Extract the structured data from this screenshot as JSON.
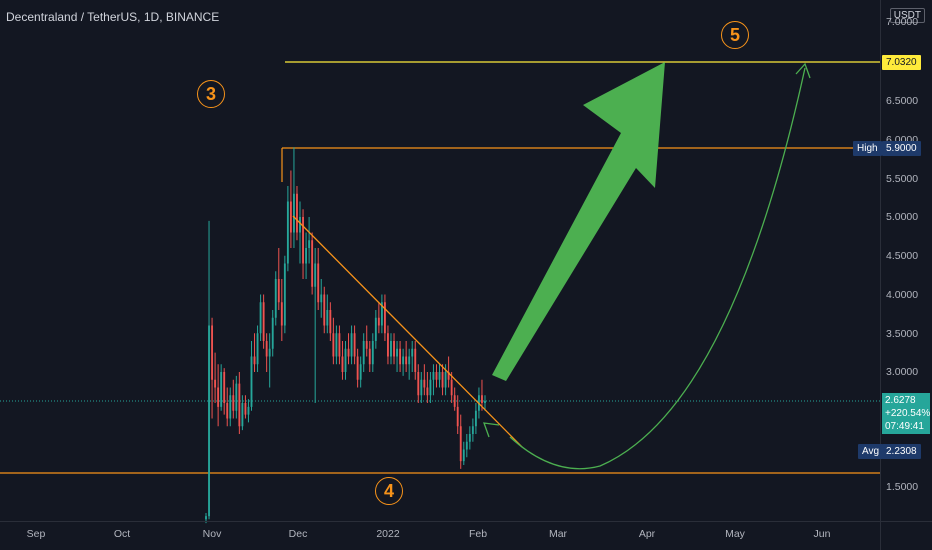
{
  "header": {
    "title": "Decentraland / TetherUS, 1D, BINANCE"
  },
  "price_axis": {
    "currency": "USDT",
    "ticks": [
      "7.0000",
      "6.5000",
      "6.0000",
      "5.5000",
      "5.0000",
      "4.5000",
      "4.0000",
      "3.5000",
      "3.0000",
      "1.5000"
    ],
    "target_value": "7.0320",
    "high_label": "High",
    "high_value": "5.9000",
    "last_price": "2.6278",
    "change_pct": "+220.54%",
    "countdown": "07:49:41",
    "avg_label": "Avg",
    "avg_value": "2.2308"
  },
  "time_axis": {
    "labels": [
      "Sep",
      "Oct",
      "Nov",
      "Dec",
      "2022",
      "Feb",
      "Mar",
      "Apr",
      "May",
      "Jun"
    ]
  },
  "wave_labels": [
    "3",
    "4",
    "5"
  ],
  "colors": {
    "background": "#131722",
    "up": "#26a69a",
    "down": "#ef5350",
    "orange": "#f7931a",
    "target": "#ffeb3b",
    "arrow": "#4caf50"
  },
  "chart_data": {
    "type": "candlestick",
    "title": "Decentraland / TetherUS, 1D, BINANCE",
    "interval": "1D",
    "x_axis": [
      "Sep",
      "Oct",
      "Nov",
      "Dec",
      "2022",
      "Feb",
      "Mar",
      "Apr",
      "May",
      "Jun"
    ],
    "ylim": [
      1.1,
      7.6
    ],
    "last_price": 2.6278,
    "change_pct": 220.54,
    "levels": {
      "target": 7.032,
      "high": 5.9,
      "avg": 2.2308
    },
    "trendline": {
      "from": 5.0,
      "to": 2.2
    },
    "candles": [
      [
        1.1,
        1.18,
        1.05,
        1.14
      ],
      [
        1.14,
        4.95,
        1.1,
        3.6
      ],
      [
        3.6,
        3.7,
        2.4,
        2.9
      ],
      [
        2.9,
        3.25,
        2.6,
        2.8
      ],
      [
        2.8,
        3.1,
        2.3,
        2.55
      ],
      [
        2.55,
        3.1,
        2.5,
        3.0
      ],
      [
        3.0,
        3.05,
        2.45,
        2.6
      ],
      [
        2.6,
        2.8,
        2.3,
        2.4
      ],
      [
        2.4,
        2.8,
        2.3,
        2.7
      ],
      [
        2.7,
        2.9,
        2.4,
        2.5
      ],
      [
        2.5,
        2.95,
        2.4,
        2.85
      ],
      [
        2.85,
        3.0,
        2.2,
        2.3
      ],
      [
        2.3,
        2.7,
        2.25,
        2.6
      ],
      [
        2.6,
        2.7,
        2.4,
        2.45
      ],
      [
        2.45,
        2.65,
        2.35,
        2.55
      ],
      [
        2.55,
        3.4,
        2.5,
        3.2
      ],
      [
        3.2,
        3.5,
        3.0,
        3.1
      ],
      [
        3.1,
        3.6,
        3.0,
        3.5
      ],
      [
        3.5,
        4.0,
        3.4,
        3.9
      ],
      [
        3.9,
        4.0,
        3.3,
        3.4
      ],
      [
        3.4,
        3.5,
        3.0,
        3.2
      ],
      [
        3.2,
        3.5,
        2.8,
        3.3
      ],
      [
        3.3,
        3.8,
        3.2,
        3.7
      ],
      [
        3.7,
        4.3,
        3.6,
        4.2
      ],
      [
        4.2,
        4.6,
        3.8,
        3.9
      ],
      [
        3.9,
        4.2,
        3.4,
        3.6
      ],
      [
        3.6,
        4.5,
        3.5,
        4.4
      ],
      [
        4.4,
        5.4,
        4.3,
        5.2
      ],
      [
        5.2,
        5.6,
        4.6,
        4.8
      ],
      [
        4.8,
        5.9,
        4.6,
        5.3
      ],
      [
        5.3,
        5.4,
        4.7,
        4.8
      ],
      [
        4.8,
        5.2,
        4.4,
        5.0
      ],
      [
        5.0,
        5.1,
        4.2,
        4.4
      ],
      [
        4.4,
        4.8,
        4.2,
        4.6
      ],
      [
        4.6,
        5.0,
        4.4,
        4.7
      ],
      [
        4.7,
        4.8,
        4.0,
        4.1
      ],
      [
        4.1,
        4.6,
        2.6,
        4.4
      ],
      [
        4.4,
        4.6,
        3.8,
        3.9
      ],
      [
        3.9,
        4.2,
        3.7,
        4.0
      ],
      [
        4.0,
        4.1,
        3.5,
        3.6
      ],
      [
        3.6,
        4.0,
        3.5,
        3.8
      ],
      [
        3.8,
        3.9,
        3.4,
        3.5
      ],
      [
        3.5,
        3.7,
        3.1,
        3.2
      ],
      [
        3.2,
        3.6,
        3.1,
        3.5
      ],
      [
        3.5,
        3.6,
        3.1,
        3.2
      ],
      [
        3.2,
        3.4,
        2.9,
        3.0
      ],
      [
        3.0,
        3.4,
        2.9,
        3.3
      ],
      [
        3.3,
        3.5,
        3.1,
        3.2
      ],
      [
        3.2,
        3.6,
        3.1,
        3.5
      ],
      [
        3.5,
        3.6,
        3.1,
        3.2
      ],
      [
        3.2,
        3.3,
        2.8,
        2.9
      ],
      [
        2.9,
        3.2,
        2.8,
        3.1
      ],
      [
        3.1,
        3.5,
        3.0,
        3.4
      ],
      [
        3.4,
        3.6,
        3.2,
        3.3
      ],
      [
        3.3,
        3.4,
        3.0,
        3.1
      ],
      [
        3.1,
        3.5,
        3.0,
        3.4
      ],
      [
        3.4,
        3.8,
        3.3,
        3.7
      ],
      [
        3.7,
        3.9,
        3.5,
        3.6
      ],
      [
        3.6,
        4.0,
        3.5,
        3.9
      ],
      [
        3.9,
        4.0,
        3.4,
        3.5
      ],
      [
        3.5,
        3.6,
        3.1,
        3.2
      ],
      [
        3.2,
        3.5,
        3.1,
        3.4
      ],
      [
        3.4,
        3.5,
        3.1,
        3.2
      ],
      [
        3.2,
        3.4,
        3.0,
        3.3
      ],
      [
        3.3,
        3.4,
        3.0,
        3.1
      ],
      [
        3.1,
        3.3,
        2.95,
        3.2
      ],
      [
        3.2,
        3.4,
        3.0,
        3.1
      ],
      [
        3.1,
        3.3,
        2.9,
        3.2
      ],
      [
        3.2,
        3.4,
        3.0,
        3.3
      ],
      [
        3.3,
        3.4,
        2.9,
        3.0
      ],
      [
        3.0,
        3.1,
        2.6,
        2.7
      ],
      [
        2.7,
        3.0,
        2.6,
        2.9
      ],
      [
        2.9,
        3.1,
        2.7,
        2.8
      ],
      [
        2.8,
        3.0,
        2.6,
        2.7
      ],
      [
        2.7,
        3.0,
        2.6,
        2.9
      ],
      [
        2.9,
        3.1,
        2.7,
        3.0
      ],
      [
        3.0,
        3.1,
        2.8,
        2.9
      ],
      [
        2.9,
        3.1,
        2.8,
        3.0
      ],
      [
        3.0,
        3.1,
        2.7,
        2.8
      ],
      [
        2.8,
        3.1,
        2.7,
        3.0
      ],
      [
        3.0,
        3.2,
        2.8,
        2.9
      ],
      [
        2.9,
        3.0,
        2.6,
        2.7
      ],
      [
        2.7,
        2.8,
        2.5,
        2.55
      ],
      [
        2.55,
        2.7,
        2.2,
        2.3
      ],
      [
        2.3,
        2.45,
        1.75,
        1.85
      ],
      [
        1.85,
        2.1,
        1.8,
        2.0
      ],
      [
        2.0,
        2.2,
        1.9,
        2.1
      ],
      [
        2.1,
        2.3,
        2.0,
        2.2
      ],
      [
        2.2,
        2.4,
        2.1,
        2.3
      ],
      [
        2.3,
        2.6,
        2.2,
        2.5
      ],
      [
        2.5,
        2.8,
        2.4,
        2.7
      ],
      [
        2.7,
        2.9,
        2.5,
        2.6
      ],
      [
        2.6,
        2.7,
        2.5,
        2.6278
      ]
    ]
  }
}
